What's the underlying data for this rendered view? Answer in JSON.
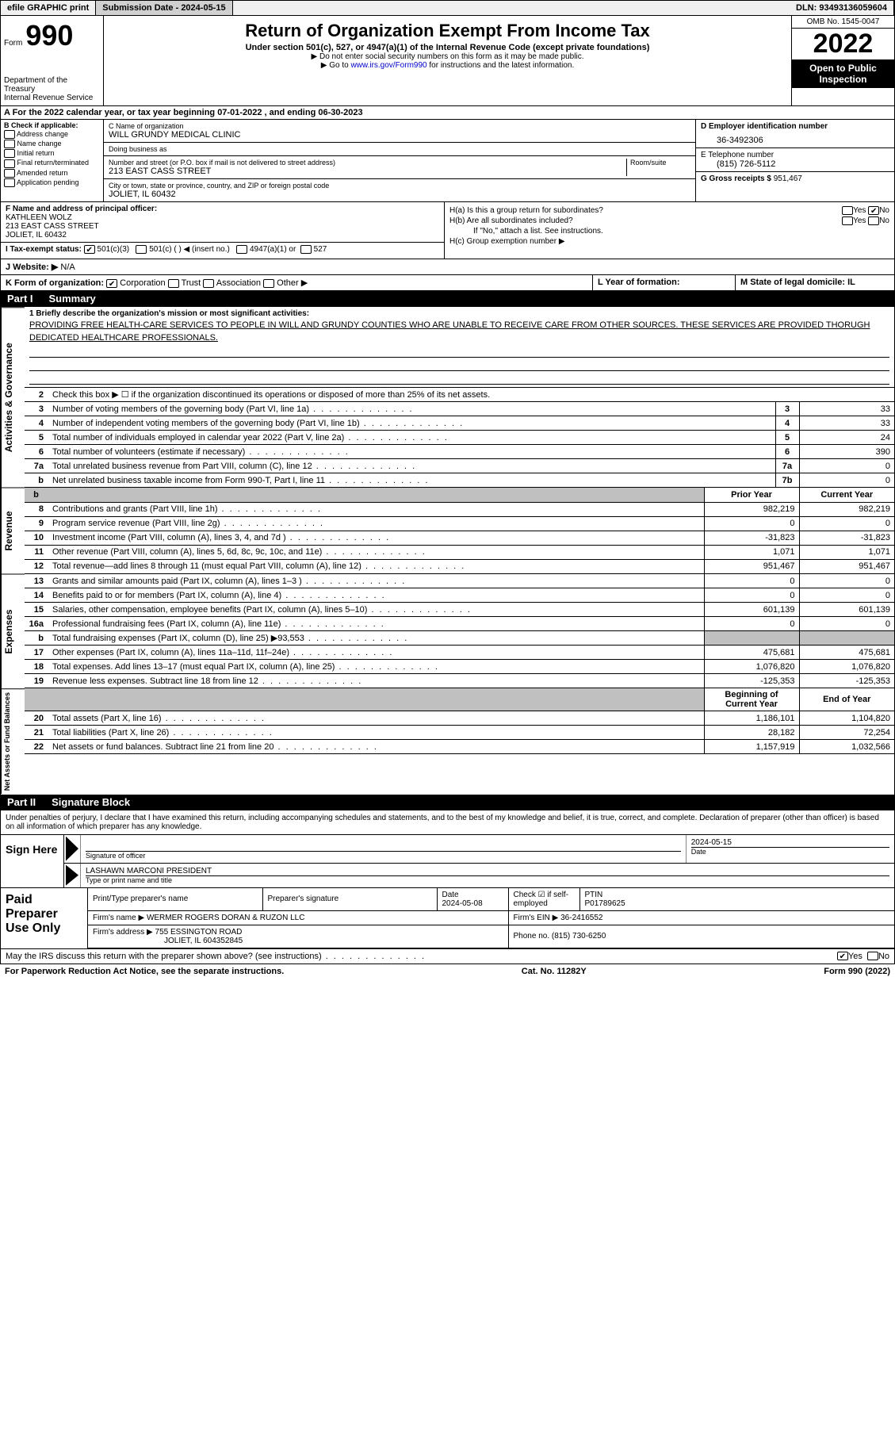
{
  "top": {
    "efile": "efile GRAPHIC print",
    "sub_label": "Submission Date - 2024-05-15",
    "dln": "DLN: 93493136059604"
  },
  "header": {
    "form_word": "Form",
    "form_num": "990",
    "dept": "Department of the Treasury\nInternal Revenue Service",
    "title": "Return of Organization Exempt From Income Tax",
    "subtitle": "Under section 501(c), 527, or 4947(a)(1) of the Internal Revenue Code (except private foundations)",
    "note1": "▶ Do not enter social security numbers on this form as it may be made public.",
    "note2_pre": "▶ Go to ",
    "note2_link": "www.irs.gov/Form990",
    "note2_post": " for instructions and the latest information.",
    "omb": "OMB No. 1545-0047",
    "year": "2022",
    "open": "Open to Public Inspection"
  },
  "row_a": "A For the 2022 calendar year, or tax year beginning 07-01-2022    , and ending 06-30-2023",
  "b": {
    "title": "B Check if applicable:",
    "opts": [
      "Address change",
      "Name change",
      "Initial return",
      "Final return/terminated",
      "Amended return",
      "Application pending"
    ]
  },
  "c": {
    "name_label": "C Name of organization",
    "name": "WILL GRUNDY MEDICAL CLINIC",
    "dba_label": "Doing business as",
    "dba": "",
    "street_label": "Number and street (or P.O. box if mail is not delivered to street address)",
    "room_label": "Room/suite",
    "street": "213 EAST CASS STREET",
    "city_label": "City or town, state or province, country, and ZIP or foreign postal code",
    "city": "JOLIET, IL  60432"
  },
  "d": {
    "ein_label": "D Employer identification number",
    "ein": "36-3492306",
    "tel_label": "E Telephone number",
    "tel": "(815) 726-5112",
    "gross_label": "G Gross receipts $",
    "gross": "951,467"
  },
  "f": {
    "label": "F  Name and address of principal officer:",
    "name": "KATHLEEN WOLZ",
    "addr1": "213 EAST CASS STREET",
    "addr2": "JOLIET, IL  60432"
  },
  "h": {
    "a": "H(a)  Is this a group return for subordinates?",
    "b": "H(b)  Are all subordinates included?",
    "b_note": "If \"No,\" attach a list. See instructions.",
    "c": "H(c)  Group exemption number ▶"
  },
  "i": {
    "label": "I  Tax-exempt status:",
    "o1": "501(c)(3)",
    "o2": "501(c) (  ) ◀ (insert no.)",
    "o3": "4947(a)(1) or",
    "o4": "527"
  },
  "j": {
    "label": "J  Website: ▶",
    "val": "N/A"
  },
  "k": {
    "label": "K Form of organization:",
    "o1": "Corporation",
    "o2": "Trust",
    "o3": "Association",
    "o4": "Other ▶"
  },
  "l": {
    "label": "L Year of formation:",
    "val": ""
  },
  "m": {
    "label": "M State of legal domicile: IL"
  },
  "part1": {
    "num": "Part I",
    "title": "Summary"
  },
  "summary": {
    "q1_label": "1  Briefly describe the organization's mission or most significant activities:",
    "q1_text": "PROVIDING FREE HEALTH-CARE SERVICES TO PEOPLE IN WILL AND GRUNDY COUNTIES WHO ARE UNABLE TO RECEIVE CARE FROM OTHER SOURCES. THESE SERVICES ARE PROVIDED THORUGH DEDICATED HEALTHCARE PROFESSIONALS.",
    "q2": "Check this box ▶ ☐  if the organization discontinued its operations or disposed of more than 25% of its net assets.",
    "lines_a": [
      {
        "n": "3",
        "d": "Number of voting members of the governing body (Part VI, line 1a)",
        "b": "3",
        "v": "33"
      },
      {
        "n": "4",
        "d": "Number of independent voting members of the governing body (Part VI, line 1b)",
        "b": "4",
        "v": "33"
      },
      {
        "n": "5",
        "d": "Total number of individuals employed in calendar year 2022 (Part V, line 2a)",
        "b": "5",
        "v": "24"
      },
      {
        "n": "6",
        "d": "Total number of volunteers (estimate if necessary)",
        "b": "6",
        "v": "390"
      },
      {
        "n": "7a",
        "d": "Total unrelated business revenue from Part VIII, column (C), line 12",
        "b": "7a",
        "v": "0"
      },
      {
        "n": "b",
        "d": "Net unrelated business taxable income from Form 990-T, Part I, line 11",
        "b": "7b",
        "v": "0"
      }
    ],
    "head_prior": "Prior Year",
    "head_current": "Current Year",
    "revenue": [
      {
        "n": "8",
        "d": "Contributions and grants (Part VIII, line 1h)",
        "p": "982,219",
        "c": "982,219"
      },
      {
        "n": "9",
        "d": "Program service revenue (Part VIII, line 2g)",
        "p": "0",
        "c": "0"
      },
      {
        "n": "10",
        "d": "Investment income (Part VIII, column (A), lines 3, 4, and 7d )",
        "p": "-31,823",
        "c": "-31,823"
      },
      {
        "n": "11",
        "d": "Other revenue (Part VIII, column (A), lines 5, 6d, 8c, 9c, 10c, and 11e)",
        "p": "1,071",
        "c": "1,071"
      },
      {
        "n": "12",
        "d": "Total revenue—add lines 8 through 11 (must equal Part VIII, column (A), line 12)",
        "p": "951,467",
        "c": "951,467"
      }
    ],
    "expenses": [
      {
        "n": "13",
        "d": "Grants and similar amounts paid (Part IX, column (A), lines 1–3 )",
        "p": "0",
        "c": "0"
      },
      {
        "n": "14",
        "d": "Benefits paid to or for members (Part IX, column (A), line 4)",
        "p": "0",
        "c": "0"
      },
      {
        "n": "15",
        "d": "Salaries, other compensation, employee benefits (Part IX, column (A), lines 5–10)",
        "p": "601,139",
        "c": "601,139"
      },
      {
        "n": "16a",
        "d": "Professional fundraising fees (Part IX, column (A), line 11e)",
        "p": "0",
        "c": "0"
      },
      {
        "n": "b",
        "d": "Total fundraising expenses (Part IX, column (D), line 25) ▶93,553",
        "p": "",
        "c": "",
        "shade": true
      },
      {
        "n": "17",
        "d": "Other expenses (Part IX, column (A), lines 11a–11d, 11f–24e)",
        "p": "475,681",
        "c": "475,681"
      },
      {
        "n": "18",
        "d": "Total expenses. Add lines 13–17 (must equal Part IX, column (A), line 25)",
        "p": "1,076,820",
        "c": "1,076,820"
      },
      {
        "n": "19",
        "d": "Revenue less expenses. Subtract line 18 from line 12",
        "p": "-125,353",
        "c": "-125,353"
      }
    ],
    "head_begin": "Beginning of Current Year",
    "head_end": "End of Year",
    "netassets": [
      {
        "n": "20",
        "d": "Total assets (Part X, line 16)",
        "p": "1,186,101",
        "c": "1,104,820"
      },
      {
        "n": "21",
        "d": "Total liabilities (Part X, line 26)",
        "p": "28,182",
        "c": "72,254"
      },
      {
        "n": "22",
        "d": "Net assets or fund balances. Subtract line 21 from line 20",
        "p": "1,157,919",
        "c": "1,032,566"
      }
    ]
  },
  "part2": {
    "num": "Part II",
    "title": "Signature Block"
  },
  "sig_text": "Under penalties of perjury, I declare that I have examined this return, including accompanying schedules and statements, and to the best of my knowledge and belief, it is true, correct, and complete. Declaration of preparer (other than officer) is based on all information of which preparer has any knowledge.",
  "sign": {
    "here": "Sign Here",
    "sig_label": "Signature of officer",
    "date": "2024-05-15",
    "date_label": "Date",
    "name": "LASHAWN MARCONI  PRESIDENT",
    "name_label": "Type or print name and title"
  },
  "paid": {
    "title": "Paid Preparer Use Only",
    "h1": "Print/Type preparer's name",
    "h2": "Preparer's signature",
    "h3_label": "Date",
    "h3": "2024-05-08",
    "h4_label": "Check ☑ if self-employed",
    "h5_label": "PTIN",
    "h5": "P01789625",
    "firm_label": "Firm's name    ▶",
    "firm": "WERMER ROGERS DORAN & RUZON LLC",
    "ein_label": "Firm's EIN ▶",
    "ein": "36-2416552",
    "addr_label": "Firm's address ▶",
    "addr1": "755 ESSINGTON ROAD",
    "addr2": "JOLIET, IL  604352845",
    "phone_label": "Phone no.",
    "phone": "(815) 730-6250"
  },
  "may_irs": "May the IRS discuss this return with the preparer shown above? (see instructions)",
  "footer": {
    "left": "For Paperwork Reduction Act Notice, see the separate instructions.",
    "mid": "Cat. No. 11282Y",
    "right": "Form 990 (2022)"
  }
}
